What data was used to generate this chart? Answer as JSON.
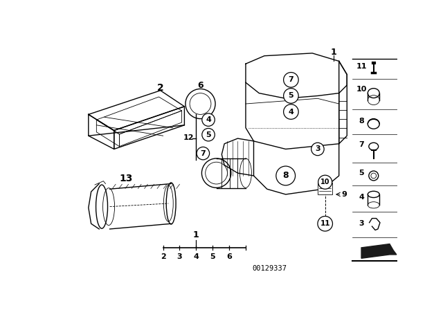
{
  "bg_color": "#ffffff",
  "line_color": "#000000",
  "fig_width": 6.4,
  "fig_height": 4.48,
  "dpi": 100,
  "part_number": "00129337"
}
